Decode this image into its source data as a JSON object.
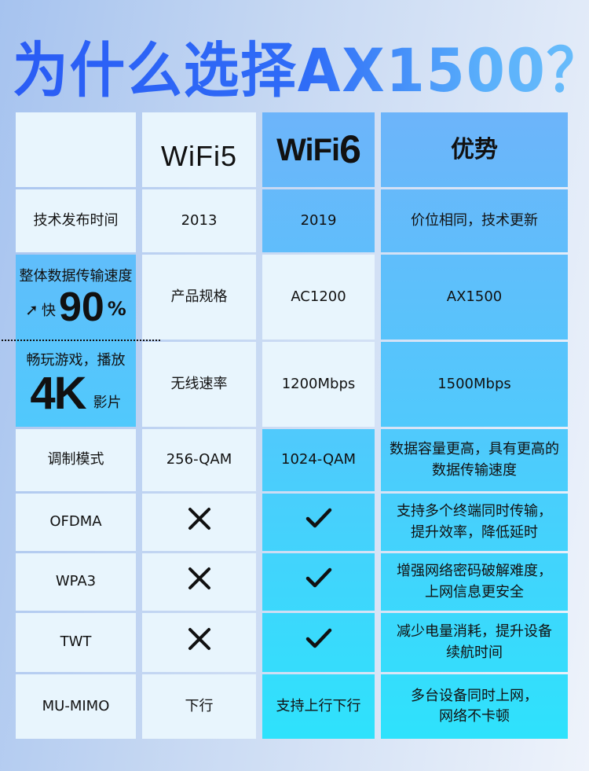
{
  "title": "为什么选择AX1500？",
  "header": {
    "col1": "",
    "col2": "WiFi5",
    "col3_prefix": "WiFi",
    "col3_suffix": "6",
    "col4": "优势"
  },
  "rows": [
    {
      "label": "技术发布时间",
      "wifi5": "2013",
      "wifi6": "2019",
      "advantage": "价位相同，技术更新"
    },
    {
      "label": "产品规格",
      "wifi5": "AC1200",
      "wifi6": "AX1500"
    },
    {
      "label": "无线速率",
      "wifi5": "1200Mbps",
      "wifi6": "1500Mbps"
    },
    {
      "label": "调制模式",
      "wifi5": "256-QAM",
      "wifi6": "1024-QAM",
      "advantage": "数据容量更高，具有更高的\n数据传输速度"
    },
    {
      "label": "OFDMA",
      "wifi5_icon": "cross-icon",
      "wifi6_icon": "check-icon",
      "advantage": "支持多个终端同时传输，\n提升效率，降低延时"
    },
    {
      "label": "WPA3",
      "wifi5_icon": "cross-icon",
      "wifi6_icon": "check-icon",
      "advantage": "增强网络密码破解难度，\n上网信息更安全"
    },
    {
      "label": "TWT",
      "wifi5_icon": "cross-icon",
      "wifi6_icon": "check-icon",
      "advantage": "减少电量消耗，提升设备\n续航时间"
    },
    {
      "label": "MU-MIMO",
      "wifi5": "下行",
      "wifi6": "支持上行下行",
      "advantage": "多台设备同时上网，\n网络不卡顿"
    }
  ],
  "merged_advantage": {
    "speed_line": "整体数据传输速度",
    "faster_label": "快",
    "faster_value": "90",
    "faster_unit": "%",
    "game_line": "畅玩游戏，播放",
    "video_big": "4K",
    "video_suffix": "影片"
  },
  "colors": {
    "title_start": "#2a5cf5",
    "title_end": "#6cc0fb",
    "light_cell": "#e8f5fd",
    "blue_top": "#6db4fa",
    "blue_bottom": "#2ee2fc"
  }
}
